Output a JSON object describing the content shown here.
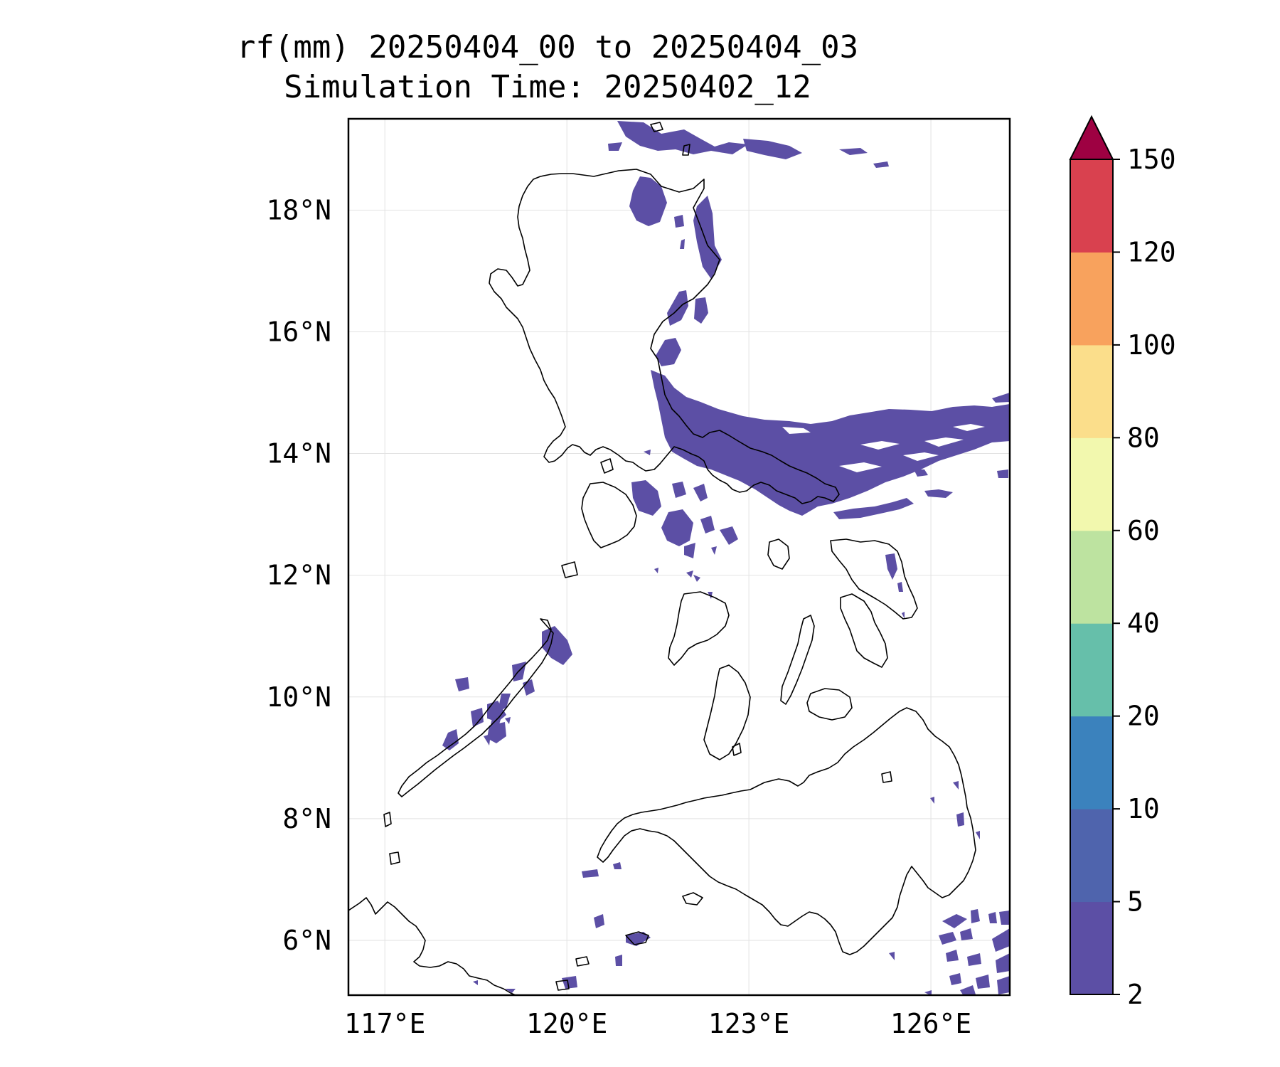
{
  "title": {
    "line1": "rf(mm) 20250404_00 to 20250404_03",
    "line2": "Simulation Time: 20250402_12"
  },
  "map": {
    "lat_labels": [
      "18°N",
      "16°N",
      "14°N",
      "12°N",
      "10°N",
      "8°N",
      "6°N"
    ],
    "lon_labels": [
      "117°E",
      "120°E",
      "123°E",
      "126°E"
    ],
    "lat_values": [
      18,
      16,
      14,
      12,
      10,
      8,
      6
    ],
    "lon_values": [
      117,
      120,
      123,
      126
    ],
    "extent": {
      "lon_min": 116.4,
      "lon_max": 127.3,
      "lat_min": 5.1,
      "lat_max": 19.5
    },
    "rain_color": "#5c4fa5"
  },
  "colorbar": {
    "levels": [
      "2",
      "5",
      "10",
      "20",
      "40",
      "60",
      "80",
      "100",
      "120",
      "150"
    ],
    "colors": [
      "#5c4fa5",
      "#4f64ad",
      "#3b82bd",
      "#66bfaa",
      "#bde3a0",
      "#f2f8ae",
      "#fbde8b",
      "#f8a25d",
      "#d9414f",
      "#9e0142"
    ],
    "extend": "max"
  }
}
